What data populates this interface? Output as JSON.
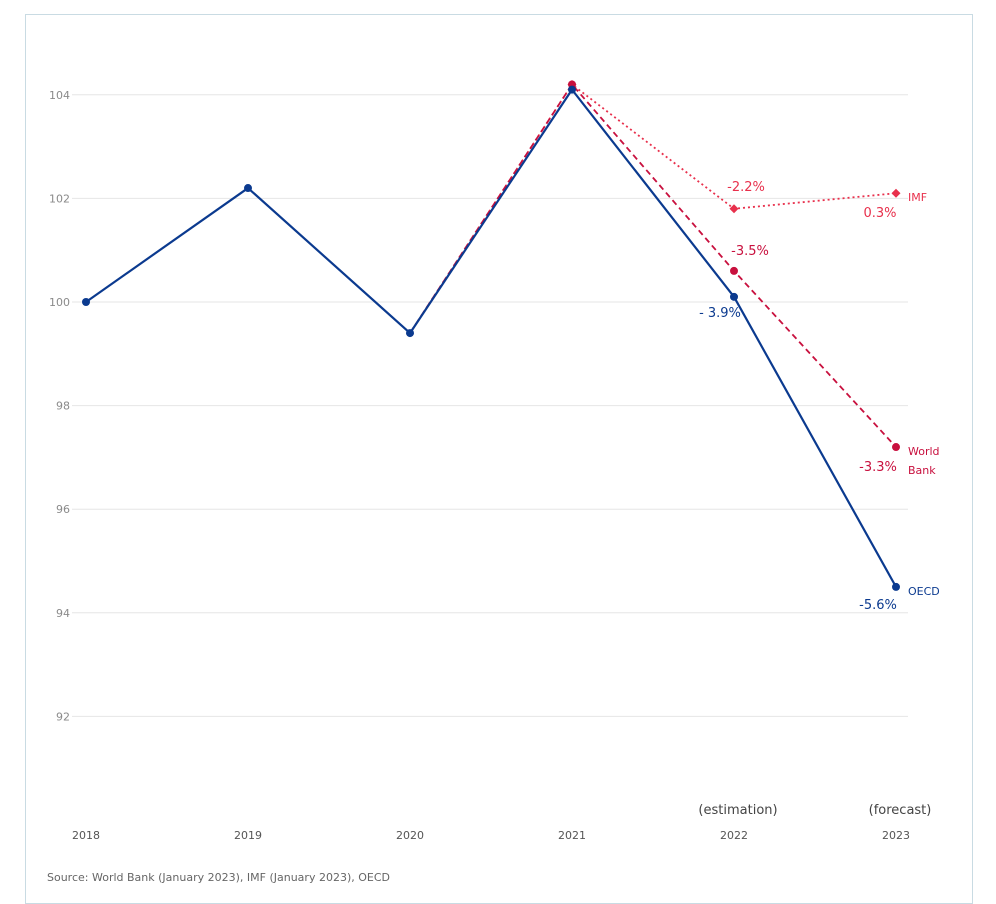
{
  "source": "Source: World Bank (January 2023), IMF (January 2023), OECD",
  "chart_data": {
    "type": "line",
    "x": [
      "2018",
      "2019",
      "2020",
      "2021",
      "2022",
      "2023"
    ],
    "x_notes": [
      "",
      "",
      "",
      "",
      "(estimation)",
      "(forecast)"
    ],
    "ylim": [
      90,
      105
    ],
    "yticks": [
      92,
      94,
      96,
      98,
      100,
      102,
      104
    ],
    "grid": true,
    "series": [
      {
        "name": "OECD",
        "color": "#0b3a8f",
        "style": "solid",
        "marker": "circle",
        "values": [
          100,
          102.2,
          99.4,
          104.1,
          100.1,
          94.5
        ],
        "annotations": [
          null,
          null,
          null,
          null,
          "- 3.9%",
          "-5.6%"
        ]
      },
      {
        "name": "World Bank",
        "color": "#c8103e",
        "style": "dashed",
        "marker": "circle",
        "values": [
          null,
          null,
          99.4,
          104.2,
          100.6,
          97.2
        ],
        "annotations": [
          null,
          null,
          null,
          null,
          "-3.5%",
          "-3.3%"
        ]
      },
      {
        "name": "IMF",
        "color": "#e8304c",
        "style": "dotted",
        "marker": "diamond",
        "values": [
          null,
          null,
          99.4,
          104.2,
          101.8,
          102.1
        ],
        "annotations": [
          null,
          null,
          null,
          null,
          "-2.2%",
          "0.3%"
        ]
      }
    ]
  }
}
